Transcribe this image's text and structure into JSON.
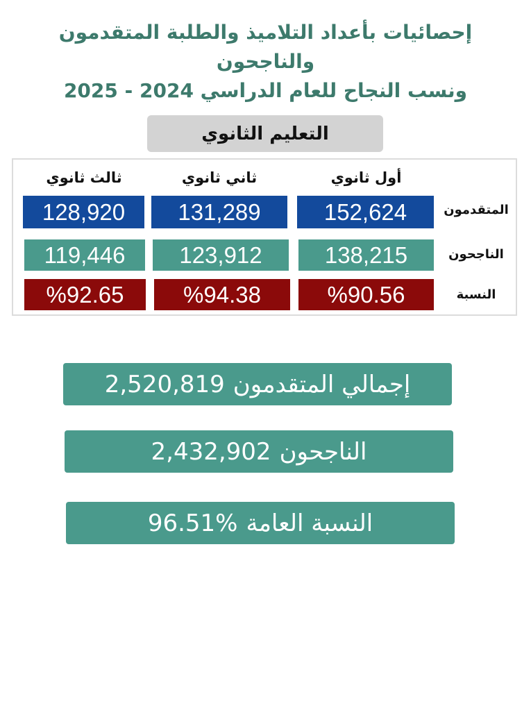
{
  "title": {
    "line1": "إحصائيات بأعداد التلاميذ والطلبة المتقدمون والناجحون",
    "line2": "ونسب النجاح للعام الدراسي  2024 - 2025"
  },
  "section_label": "التعليم الثانوي",
  "colors": {
    "title": "#3d7a6c",
    "applicants": "#134a9c",
    "passed": "#4a9a8c",
    "rate": "#8b0a0a",
    "section_bg": "#d3d3d3"
  },
  "table": {
    "columns": [
      "أول ثانوي",
      "ثاني ثانوي",
      "ثالث ثانوي"
    ],
    "rows": [
      {
        "label": "المتقدمون",
        "values": [
          "152,624",
          "131,289",
          "128,920"
        ]
      },
      {
        "label": "الناجحون",
        "values": [
          "138,215",
          "123,912",
          "119,446"
        ]
      },
      {
        "label": "النسبة",
        "values": [
          "%90.56",
          "%94.38",
          "%92.65"
        ]
      }
    ]
  },
  "summary": [
    {
      "label": "إجمالي المتقدمون",
      "value": "2,520,819"
    },
    {
      "label": "الناجحون",
      "value": "2,432,902"
    },
    {
      "label": "النسبة العامة",
      "value": "96.51%"
    }
  ]
}
